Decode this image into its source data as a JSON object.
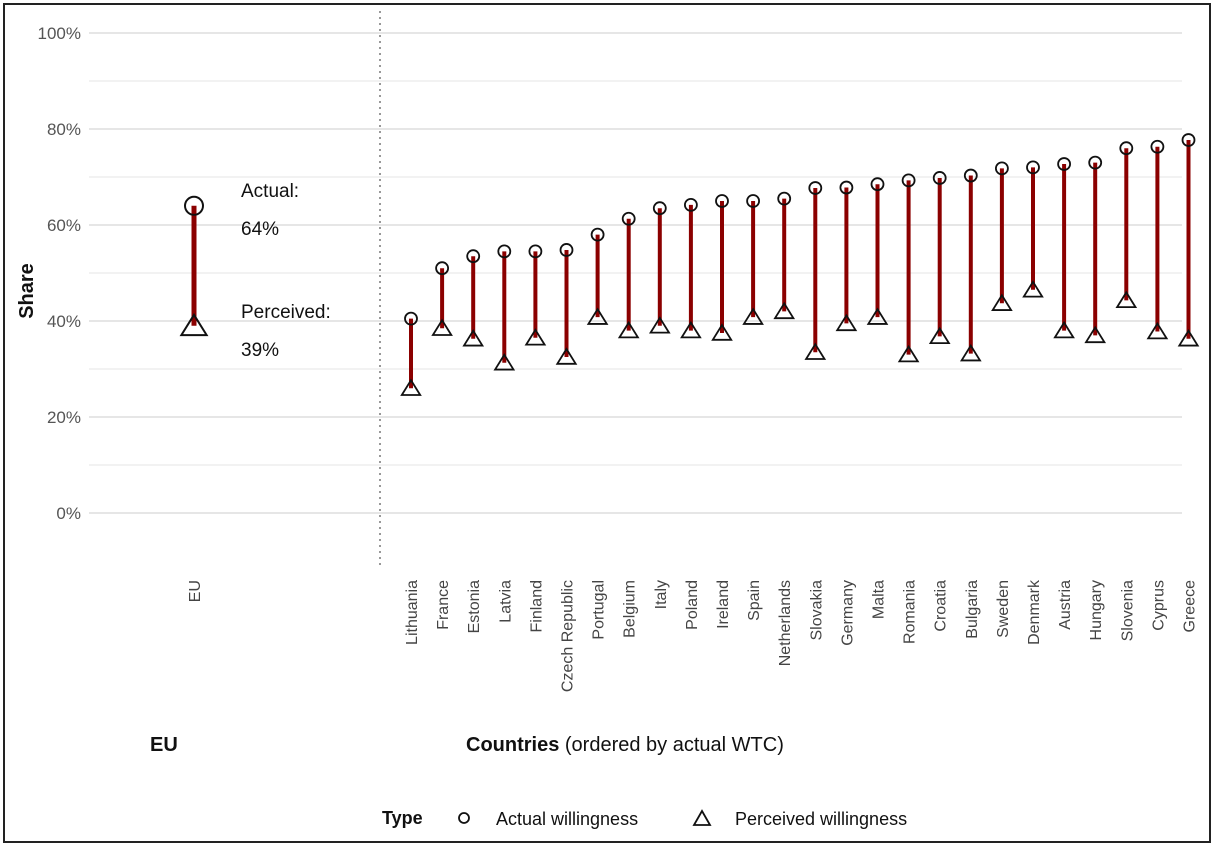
{
  "chart_data": {
    "type": "dumbbell",
    "ylabel": "Share",
    "yticks": [
      "0%",
      "20%",
      "40%",
      "60%",
      "80%",
      "100%"
    ],
    "ylim": [
      -0.12,
      1.0
    ],
    "grid": true,
    "eu_panel": {
      "title": "EU",
      "category": "EU",
      "actual": 0.64,
      "perceived": 0.39,
      "actual_label": "Actual:",
      "actual_value": "64%",
      "perceived_label": "Perceived:",
      "perceived_value": "39%"
    },
    "countries_panel": {
      "title_bold": "Countries",
      "title_rest": " (ordered by actual WTC)",
      "categories": [
        "Lithuania",
        "France",
        "Estonia",
        "Latvia",
        "Finland",
        "Czech Republic",
        "Portugal",
        "Belgium",
        "Italy",
        "Poland",
        "Ireland",
        "Spain",
        "Netherlands",
        "Slovakia",
        "Germany",
        "Malta",
        "Romania",
        "Croatia",
        "Bulgaria",
        "Sweden",
        "Denmark",
        "Austria",
        "Hungary",
        "Slovenia",
        "Cyprus",
        "Greece"
      ],
      "actual": [
        0.405,
        0.51,
        0.535,
        0.545,
        0.545,
        0.548,
        0.58,
        0.613,
        0.635,
        0.642,
        0.65,
        0.65,
        0.655,
        0.677,
        0.678,
        0.685,
        0.693,
        0.698,
        0.703,
        0.718,
        0.72,
        0.727,
        0.73,
        0.76,
        0.763,
        0.777
      ],
      "perceived": [
        0.26,
        0.385,
        0.363,
        0.313,
        0.365,
        0.325,
        0.408,
        0.38,
        0.39,
        0.38,
        0.375,
        0.408,
        0.42,
        0.335,
        0.395,
        0.408,
        0.33,
        0.368,
        0.332,
        0.437,
        0.465,
        0.38,
        0.37,
        0.443,
        0.378,
        0.363
      ]
    },
    "legend": {
      "title": "Type",
      "items": [
        "Actual willingness",
        "Perceived willingness"
      ],
      "placement": "bottom"
    },
    "colors": {
      "segment": "#8b0000",
      "marker": "#111111",
      "grid": "#e6e6e6"
    }
  }
}
